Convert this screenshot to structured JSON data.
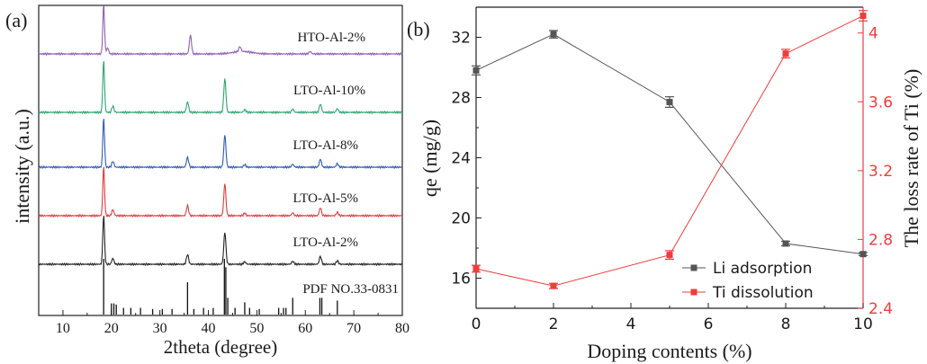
{
  "chart_data": [
    {
      "type": "line",
      "panel_label": "(a)",
      "xlabel": "2theta (degree)",
      "ylabel": "intensity (a.u.)",
      "xlim": [
        5,
        80
      ],
      "x_ticks": [
        10,
        20,
        30,
        40,
        50,
        60,
        70,
        80
      ],
      "legend_placement": "inline labels above each trace",
      "series": [
        {
          "name": "HTO-Al-2%",
          "color": "#8c5fb5",
          "peaks": [
            {
              "x": 18.4,
              "h": 1.0
            },
            {
              "x": 19.2,
              "h": 0.12
            },
            {
              "x": 36.3,
              "h": 0.38
            },
            {
              "x": 46.5,
              "h": 0.1
            },
            {
              "x": 61.0,
              "h": 0.05
            }
          ]
        },
        {
          "name": "LTO-Al-10%",
          "color": "#2ea66f",
          "peaks": [
            {
              "x": 18.4,
              "h": 1.0
            },
            {
              "x": 20.3,
              "h": 0.12
            },
            {
              "x": 35.7,
              "h": 0.2
            },
            {
              "x": 43.4,
              "h": 0.65
            },
            {
              "x": 47.5,
              "h": 0.05
            },
            {
              "x": 57.4,
              "h": 0.06
            },
            {
              "x": 63.1,
              "h": 0.16
            },
            {
              "x": 66.6,
              "h": 0.07
            }
          ]
        },
        {
          "name": "LTO-Al-8%",
          "color": "#2e5bb8",
          "peaks": [
            {
              "x": 18.4,
              "h": 1.0
            },
            {
              "x": 20.3,
              "h": 0.12
            },
            {
              "x": 35.7,
              "h": 0.2
            },
            {
              "x": 43.4,
              "h": 0.65
            },
            {
              "x": 47.5,
              "h": 0.05
            },
            {
              "x": 57.4,
              "h": 0.06
            },
            {
              "x": 63.1,
              "h": 0.16
            },
            {
              "x": 66.6,
              "h": 0.07
            }
          ]
        },
        {
          "name": "LTO-Al-5%",
          "color": "#e23a3a",
          "peaks": [
            {
              "x": 18.4,
              "h": 1.0
            },
            {
              "x": 20.3,
              "h": 0.12
            },
            {
              "x": 35.7,
              "h": 0.2
            },
            {
              "x": 43.4,
              "h": 0.65
            },
            {
              "x": 47.5,
              "h": 0.05
            },
            {
              "x": 57.4,
              "h": 0.06
            },
            {
              "x": 63.1,
              "h": 0.16
            },
            {
              "x": 66.6,
              "h": 0.07
            }
          ]
        },
        {
          "name": "LTO-Al-2%",
          "color": "#222222",
          "peaks": [
            {
              "x": 18.4,
              "h": 1.0
            },
            {
              "x": 20.3,
              "h": 0.12
            },
            {
              "x": 35.7,
              "h": 0.2
            },
            {
              "x": 43.4,
              "h": 0.65
            },
            {
              "x": 47.5,
              "h": 0.05
            },
            {
              "x": 57.4,
              "h": 0.06
            },
            {
              "x": 63.1,
              "h": 0.16
            },
            {
              "x": 66.6,
              "h": 0.07
            }
          ]
        }
      ],
      "reference": {
        "name": "PDF NO.33-0831",
        "sticks": [
          {
            "x": 18.4,
            "h": 1.0
          },
          {
            "x": 20.0,
            "h": 0.2
          },
          {
            "x": 20.5,
            "h": 0.2
          },
          {
            "x": 21.0,
            "h": 0.18
          },
          {
            "x": 22.5,
            "h": 0.12
          },
          {
            "x": 24.0,
            "h": 0.12
          },
          {
            "x": 26.0,
            "h": 0.12
          },
          {
            "x": 28.5,
            "h": 0.1
          },
          {
            "x": 30.5,
            "h": 0.1
          },
          {
            "x": 32.5,
            "h": 0.1
          },
          {
            "x": 35.7,
            "h": 0.58
          },
          {
            "x": 37.0,
            "h": 0.1
          },
          {
            "x": 39.0,
            "h": 0.12
          },
          {
            "x": 41.0,
            "h": 0.12
          },
          {
            "x": 43.3,
            "h": 1.0
          },
          {
            "x": 43.6,
            "h": 0.85
          },
          {
            "x": 44.0,
            "h": 0.3
          },
          {
            "x": 45.5,
            "h": 0.12
          },
          {
            "x": 47.5,
            "h": 0.22
          },
          {
            "x": 48.5,
            "h": 0.12
          },
          {
            "x": 50.5,
            "h": 0.1
          },
          {
            "x": 54.5,
            "h": 0.12
          },
          {
            "x": 55.5,
            "h": 0.12
          },
          {
            "x": 56.0,
            "h": 0.12
          },
          {
            "x": 57.4,
            "h": 0.3
          },
          {
            "x": 63.0,
            "h": 0.3
          },
          {
            "x": 63.4,
            "h": 0.3
          },
          {
            "x": 66.6,
            "h": 0.25
          }
        ]
      }
    },
    {
      "type": "line",
      "panel_label": "(b)",
      "xlabel": "Doping contents (%)",
      "ylabel_left": "qe (mg/g)",
      "ylabel_right": "The loss rate of Ti (%)",
      "xlim": [
        0,
        10
      ],
      "ylim_left": [
        14,
        34
      ],
      "ylim_right": [
        2.4,
        4.15
      ],
      "x_ticks": [
        0,
        2,
        4,
        6,
        8,
        10
      ],
      "y_ticks_left": [
        16,
        20,
        24,
        28,
        32
      ],
      "y_ticks_right": [
        "2.4",
        "2.8",
        "3.2",
        "3.6",
        "4"
      ],
      "legend_placement": "lower-right",
      "x": [
        0,
        2,
        5,
        8,
        10
      ],
      "series": [
        {
          "name": "Li adsorption",
          "axis": "left",
          "color": "#555555",
          "values": [
            29.8,
            32.2,
            27.7,
            18.3,
            17.6
          ],
          "errors": [
            0.3,
            0.25,
            0.35,
            0.15,
            0.1
          ]
        },
        {
          "name": "Ti dissolution",
          "axis": "right",
          "color": "#f03c3c",
          "values": [
            2.63,
            2.53,
            2.71,
            3.88,
            4.1
          ],
          "errors": [
            0.02,
            0.015,
            0.025,
            0.025,
            0.03
          ]
        }
      ]
    }
  ]
}
